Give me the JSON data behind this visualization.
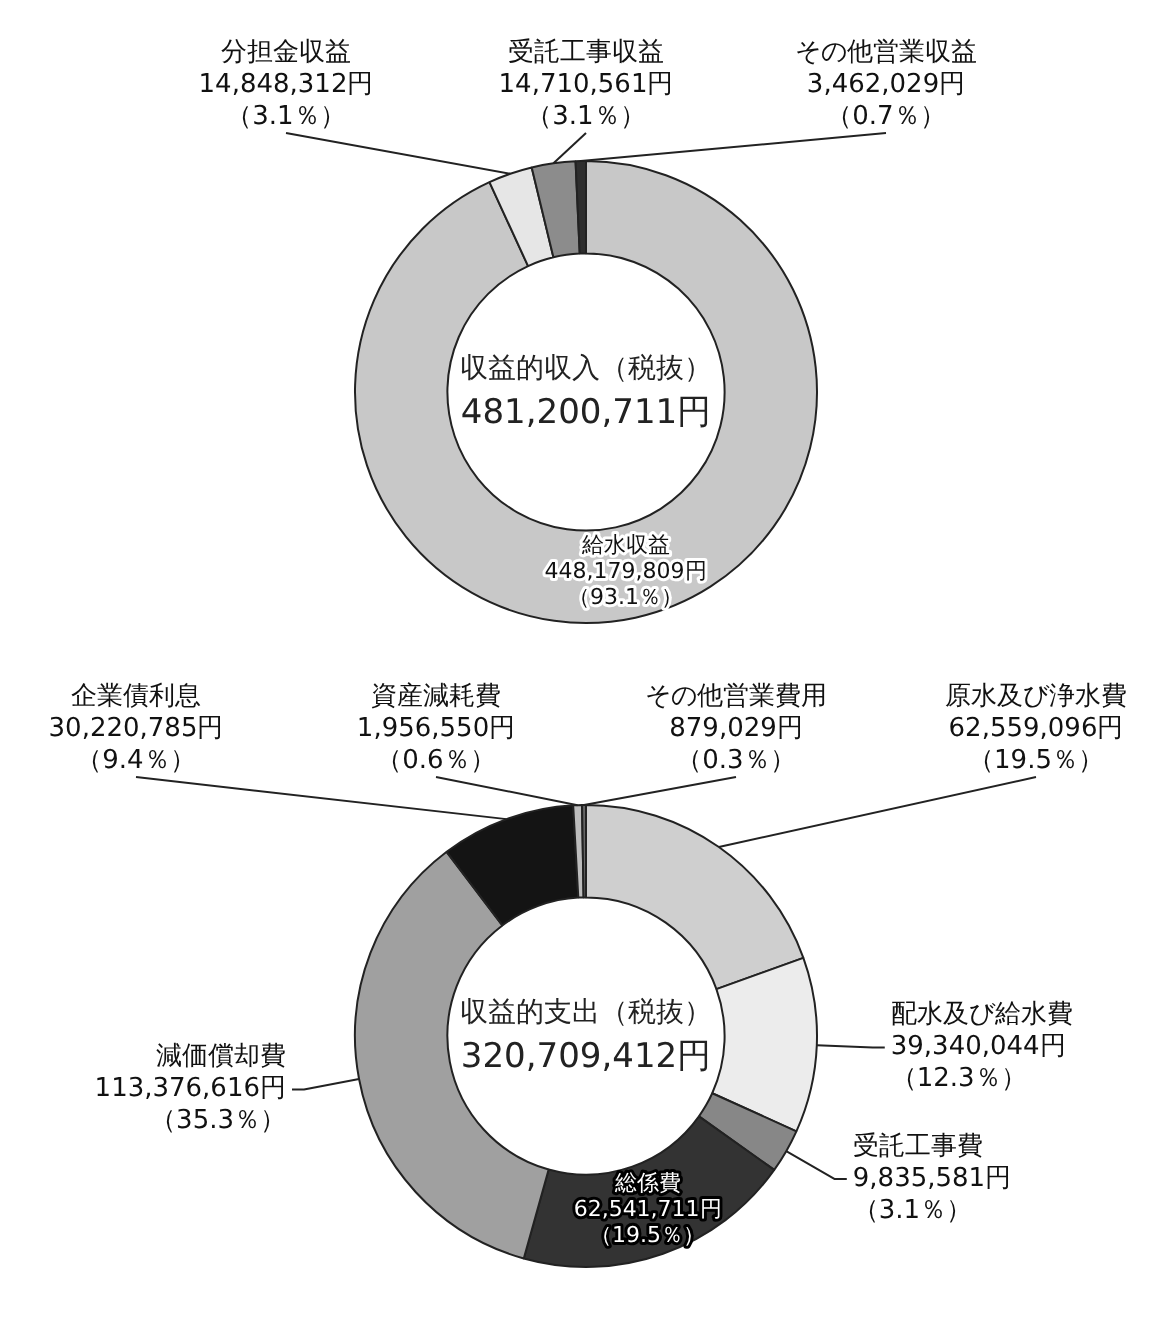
{
  "chart_data": [
    {
      "type": "donut",
      "title": "収益的収入（税抜）",
      "subtitle": "481,200,711円",
      "categories": [
        "給水収益",
        "分担金収益",
        "受託工事収益",
        "その他営業収益"
      ],
      "values": [
        448179809,
        14848312,
        14710561,
        3462029
      ],
      "colors": [
        "#c8c8c8",
        "#e6e6e6",
        "#8c8c8c",
        "#2e2e2e"
      ],
      "value_labels": [
        "448,179,809円（93.1％）",
        "14,848,312円（3.1％）",
        "14,710,561円（3.1％）",
        "3,462,029円（0.7％）"
      ]
    },
    {
      "type": "donut",
      "title": "収益的支出（税抜）",
      "subtitle": "320,709,412円",
      "categories": [
        "原水及び浄水費",
        "配水及び給水費",
        "受託工事費",
        "総係費",
        "減価償却費",
        "企業債利息",
        "資産減耗費",
        "その他営業費用"
      ],
      "values": [
        62559096,
        39340044,
        9835581,
        62541711,
        113376616,
        30220785,
        1956550,
        879029
      ],
      "colors": [
        "#cfcfcf",
        "#ececec",
        "#878787",
        "#333333",
        "#a0a0a0",
        "#141414",
        "#bdbdbd",
        "#666666"
      ],
      "value_labels": [
        "62,559,096円（19.5％）",
        "39,340,044円（12.3％）",
        "9,835,581円（3.1％）",
        "62,541,711円（19.5％）",
        "113,376,616円（35.3％）",
        "30,220,785円（9.4％）",
        "1,956,550円（0.6％）",
        "879,029円（0.3％）"
      ]
    }
  ]
}
